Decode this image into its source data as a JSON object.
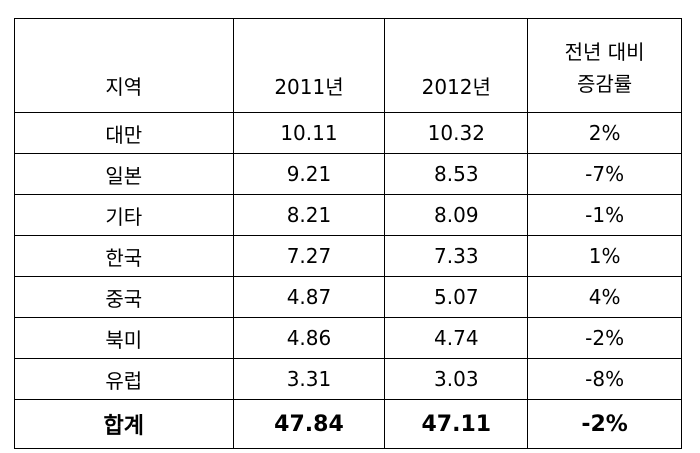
{
  "table": {
    "header": [
      "지역",
      "2011년",
      "2012년",
      [
        "전년 대비",
        "증감률"
      ]
    ],
    "rows": [
      [
        "대만",
        "10.11",
        "10.32",
        "2%"
      ],
      [
        "일본",
        "9.21",
        "8.53",
        "-7%"
      ],
      [
        "기타",
        "8.21",
        "8.09",
        "-1%"
      ],
      [
        "한국",
        "7.27",
        "7.33",
        "1%"
      ],
      [
        "중국",
        "4.87",
        "5.07",
        "4%"
      ],
      [
        "북미",
        "4.86",
        "4.74",
        "-2%"
      ],
      [
        "유럽",
        "3.31",
        "3.03",
        "-8%"
      ]
    ],
    "total": [
      "합계",
      "47.84",
      "47.11",
      "-2%"
    ]
  }
}
